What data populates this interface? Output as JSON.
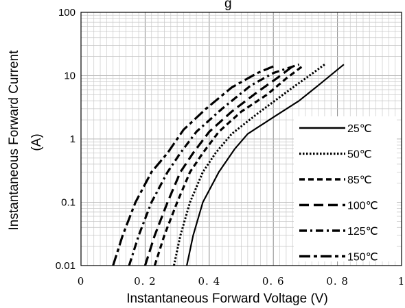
{
  "chart_data": {
    "type": "line",
    "title": "g",
    "xlabel": "Instantaneous Forward Voltage (V)",
    "ylabel_lines": [
      "Instantaneous Forward Current",
      "(A)"
    ],
    "x_ticks": [
      "0",
      "0. 2",
      "0. 4",
      "0. 6",
      "0. 8",
      "1"
    ],
    "y_ticks": [
      "0.01",
      "0.1",
      "1",
      "10",
      "100"
    ],
    "xlim": [
      0,
      1
    ],
    "ylim": [
      0.01,
      100
    ],
    "y_scale": "log",
    "grid": true,
    "legend_position": "bottom-right",
    "series": [
      {
        "name": "25℃",
        "style": "solid",
        "points": [
          [
            0.33,
            0.01
          ],
          [
            0.35,
            0.03
          ],
          [
            0.38,
            0.1
          ],
          [
            0.43,
            0.3
          ],
          [
            0.48,
            0.7
          ],
          [
            0.52,
            1.2
          ],
          [
            0.6,
            2.2
          ],
          [
            0.68,
            4
          ],
          [
            0.74,
            7
          ],
          [
            0.82,
            15
          ]
        ]
      },
      {
        "name": "50℃",
        "style": "dotted",
        "points": [
          [
            0.29,
            0.01
          ],
          [
            0.31,
            0.03
          ],
          [
            0.34,
            0.1
          ],
          [
            0.38,
            0.3
          ],
          [
            0.42,
            0.6
          ],
          [
            0.47,
            1.2
          ],
          [
            0.55,
            2.5
          ],
          [
            0.63,
            5
          ],
          [
            0.7,
            9
          ],
          [
            0.76,
            15
          ]
        ]
      },
      {
        "name": "85℃",
        "style": "dashed",
        "points": [
          [
            0.23,
            0.01
          ],
          [
            0.26,
            0.03
          ],
          [
            0.3,
            0.1
          ],
          [
            0.34,
            0.3
          ],
          [
            0.38,
            0.6
          ],
          [
            0.43,
            1.3
          ],
          [
            0.5,
            2.7
          ],
          [
            0.58,
            5
          ],
          [
            0.64,
            9
          ],
          [
            0.69,
            14
          ]
        ]
      },
      {
        "name": "100℃",
        "style": "longdash",
        "points": [
          [
            0.2,
            0.01
          ],
          [
            0.23,
            0.03
          ],
          [
            0.27,
            0.1
          ],
          [
            0.31,
            0.3
          ],
          [
            0.35,
            0.6
          ],
          [
            0.4,
            1.3
          ],
          [
            0.47,
            2.7
          ],
          [
            0.55,
            5.5
          ],
          [
            0.61,
            9
          ],
          [
            0.66,
            14
          ]
        ]
      },
      {
        "name": "125℃",
        "style": "dashdot",
        "points": [
          [
            0.15,
            0.01
          ],
          [
            0.18,
            0.03
          ],
          [
            0.22,
            0.1
          ],
          [
            0.27,
            0.3
          ],
          [
            0.31,
            0.6
          ],
          [
            0.36,
            1.3
          ],
          [
            0.44,
            3
          ],
          [
            0.53,
            7
          ],
          [
            0.6,
            11
          ],
          [
            0.68,
            15
          ]
        ]
      },
      {
        "name": "150℃",
        "style": "longdashshort",
        "points": [
          [
            0.1,
            0.01
          ],
          [
            0.13,
            0.03
          ],
          [
            0.17,
            0.1
          ],
          [
            0.22,
            0.3
          ],
          [
            0.27,
            0.6
          ],
          [
            0.32,
            1.4
          ],
          [
            0.39,
            3
          ],
          [
            0.47,
            6.5
          ],
          [
            0.55,
            11
          ],
          [
            0.6,
            14
          ]
        ]
      }
    ]
  }
}
